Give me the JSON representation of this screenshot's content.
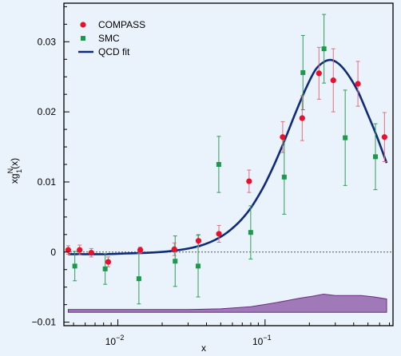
{
  "chart_data": {
    "type": "scatter",
    "title": "",
    "xlabel": "x",
    "ylabel_main": "xg",
    "ylabel_sup": "N",
    "ylabel_sub": "1",
    "ylabel_tail": "(x)",
    "x_scale": "log",
    "xlim": [
      0.0043,
      0.74
    ],
    "ylim": [
      -0.0105,
      0.0355
    ],
    "y_ticks": [
      -0.01,
      0,
      0.01,
      0.02,
      0.03
    ],
    "y_tick_labels": [
      "−0.01",
      "0",
      "0.01",
      "0.02",
      "0.03"
    ],
    "x_major_ticks": [
      0.01,
      0.1
    ],
    "x_tick_labels": [
      {
        "base": "10",
        "exp": "−2"
      },
      {
        "base": "10",
        "exp": "−1"
      }
    ],
    "zero_line": "dotted",
    "grid": false,
    "legend_placement": "top-left",
    "colors": {
      "compass": "#e8112d",
      "compass_error": "#e07080",
      "smc": "#1a9a4a",
      "smc_error": "#2e9e5a",
      "fit": "#0d2b7a",
      "band_fill": "#a07ab8",
      "band_edge": "#6b2d84",
      "axis": "#000000",
      "background": "#eaf2fb"
    },
    "legend": [
      {
        "key": "compass",
        "label": "COMPASS",
        "marker": "circle"
      },
      {
        "key": "smc",
        "label": "SMC",
        "marker": "square"
      },
      {
        "key": "fit",
        "label": "QCD fit",
        "marker": "line"
      }
    ],
    "series": [
      {
        "name": "COMPASS",
        "marker": "circle",
        "x": [
          0.0046,
          0.0055,
          0.0066,
          0.0086,
          0.0142,
          0.0242,
          0.0353,
          0.0486,
          0.0779,
          0.1318,
          0.1788,
          0.2324,
          0.2908,
          0.4275,
          0.6478
        ],
        "y": [
          0.0003,
          0.0003,
          -0.0001,
          -0.0014,
          0.0003,
          0.0004,
          0.0016,
          0.0026,
          0.0101,
          0.0164,
          0.0191,
          0.0255,
          0.0245,
          0.024,
          0.0164
        ],
        "err": [
          0.0006,
          0.0007,
          0.0006,
          0.0007,
          0.0004,
          0.0009,
          0.0009,
          0.0012,
          0.0016,
          0.0022,
          0.0032,
          0.0037,
          0.0045,
          0.0032,
          0.0035
        ]
      },
      {
        "name": "SMC",
        "marker": "square",
        "x": [
          0.0051,
          0.0082,
          0.0139,
          0.0245,
          0.0351,
          0.0485,
          0.0799,
          0.135,
          0.1809,
          0.2515,
          0.3503,
          0.5622
        ],
        "y": [
          -0.002,
          -0.0024,
          -0.0038,
          -0.0013,
          -0.002,
          0.0125,
          0.0028,
          0.0107,
          0.0256,
          0.029,
          0.0163,
          0.0136
        ],
        "err": [
          0.0021,
          0.0022,
          0.0036,
          0.0036,
          0.0044,
          0.004,
          0.0038,
          0.0053,
          0.0053,
          0.0049,
          0.0068,
          0.0047
        ]
      }
    ],
    "fit_curve": {
      "name": "QCD fit",
      "x": [
        0.0046,
        0.0062,
        0.0083,
        0.0115,
        0.016,
        0.022,
        0.03,
        0.04,
        0.052,
        0.066,
        0.08,
        0.097,
        0.115,
        0.135,
        0.16,
        0.19,
        0.22,
        0.25,
        0.28,
        0.31,
        0.34,
        0.38,
        0.43,
        0.5,
        0.57,
        0.67
      ],
      "y": [
        -0.0003,
        -0.0003,
        -0.0003,
        -0.0002,
        -0.0001,
        0.0001,
        0.0005,
        0.0012,
        0.0024,
        0.0042,
        0.0063,
        0.0092,
        0.0124,
        0.0158,
        0.0197,
        0.0234,
        0.026,
        0.0271,
        0.0274,
        0.027,
        0.0262,
        0.0248,
        0.0228,
        0.0196,
        0.0167,
        0.0127
      ]
    },
    "uncertainty_band": {
      "x": [
        0.0046,
        0.01,
        0.03,
        0.05,
        0.08,
        0.12,
        0.17,
        0.21,
        0.25,
        0.3,
        0.38,
        0.45,
        0.55,
        0.67
      ],
      "lower": [
        -0.0086,
        -0.0086,
        -0.0086,
        -0.0086,
        -0.0086,
        -0.0086,
        -0.0086,
        -0.0086,
        -0.0086,
        -0.0086,
        -0.0086,
        -0.0086,
        -0.0086,
        -0.0086
      ],
      "upper": [
        -0.0082,
        -0.0082,
        -0.0082,
        -0.0081,
        -0.0078,
        -0.0072,
        -0.0066,
        -0.0063,
        -0.006,
        -0.0062,
        -0.0062,
        -0.0062,
        -0.0064,
        -0.0067
      ]
    }
  }
}
